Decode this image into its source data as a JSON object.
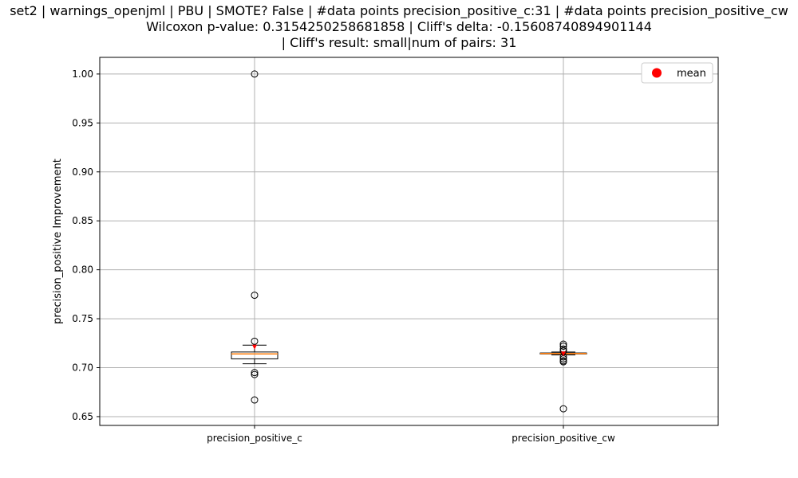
{
  "chart_data": {
    "type": "box",
    "title_lines": [
      "set2 | warnings_openjml | PBU | SMOTE? False | #data points precision_positive_c:31 | #data points precision_positive_cw",
      "Wilcoxon p-value: 0.3154250258681858 | Cliff's delta: -0.15608740894901144",
      "| Cliff's result: small|num of pairs: 31"
    ],
    "xlabel": "",
    "ylabel": "precision_positive Improvement",
    "ylim": [
      0.641,
      1.017
    ],
    "yticks": [
      "0.65",
      "0.70",
      "0.75",
      "0.80",
      "0.85",
      "0.90",
      "0.95",
      "1.00"
    ],
    "ytick_values": [
      0.65,
      0.7,
      0.75,
      0.8,
      0.85,
      0.9,
      0.95,
      1.0
    ],
    "grid": true,
    "legend": {
      "position": "top-right",
      "entries": [
        {
          "label": "mean",
          "marker": "circle",
          "color": "#ff0000"
        }
      ]
    },
    "categories": [
      "precision_positive_c",
      "precision_positive_cw"
    ],
    "boxes": [
      {
        "name": "precision_positive_c",
        "whisker_low": 0.704,
        "q1": 0.709,
        "median": 0.714,
        "q3": 0.716,
        "whisker_high": 0.723,
        "mean": 0.721,
        "outliers": [
          1.0,
          0.774,
          0.727,
          0.695,
          0.693,
          0.667
        ]
      },
      {
        "name": "precision_positive_cw",
        "whisker_low": 0.713,
        "q1": 0.714,
        "median": 0.7145,
        "q3": 0.715,
        "whisker_high": 0.716,
        "mean": 0.714,
        "outliers": [
          0.724,
          0.722,
          0.719,
          0.717,
          0.711,
          0.709,
          0.707,
          0.706,
          0.658
        ]
      }
    ],
    "colors": {
      "box": "#000000",
      "median": "#ff7f0e",
      "mean": "#ff0000",
      "grid": "#b0b0b0"
    }
  }
}
